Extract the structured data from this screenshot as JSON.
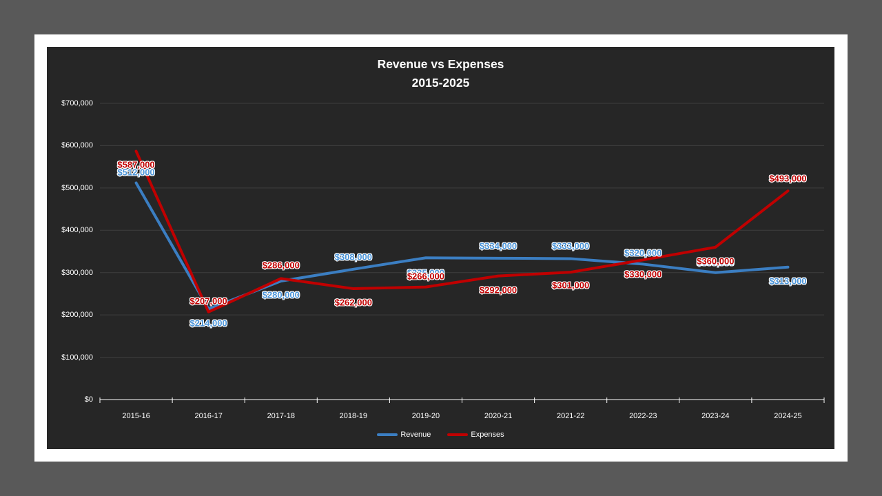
{
  "background_color": "#595959",
  "slide_color": "#ffffff",
  "chart_data": {
    "type": "line",
    "title": "Revenue vs Expenses",
    "subtitle": "2015-2025",
    "plot_bg": "#262626",
    "gridline_color": "#3f3f3f",
    "axis_color": "#ffffff",
    "text_color": "#ffffff",
    "grid": "horizontal-only",
    "legend_position": "bottom-center",
    "categories": [
      "2015-16",
      "2016-17",
      "2017-18",
      "2018-19",
      "2019-20",
      "2020-21",
      "2021-22",
      "2022-23",
      "2023-24",
      "2024-25"
    ],
    "ylim": [
      0,
      700000
    ],
    "ytick_interval": 100000,
    "ytick_labels": [
      "$0",
      "$100,000",
      "$200,000",
      "$300,000",
      "$400,000",
      "$500,000",
      "$600,000",
      "$700,000"
    ],
    "series": [
      {
        "name": "Revenue",
        "color": "#3B7EC2",
        "label_color": "#4C95D9",
        "values": [
          512000,
          214000,
          280000,
          308000,
          335000,
          334000,
          333000,
          320000,
          300000,
          313000
        ],
        "labels": [
          "$512,000",
          "$214,000",
          "$280,000",
          "$308,000",
          "$335,000",
          "$334,000",
          "$333,000",
          "$320,000",
          "$300,000",
          "$313,000"
        ],
        "label_dy": [
          -15,
          20,
          20,
          -18,
          22,
          -18,
          -18,
          -16,
          -15,
          20
        ],
        "label_z": [
          3,
          1,
          1,
          1,
          1,
          1,
          1,
          1,
          1,
          1
        ]
      },
      {
        "name": "Expenses",
        "color": "#C00000",
        "label_color": "#C00000",
        "values": [
          587000,
          207000,
          286000,
          262000,
          266000,
          292000,
          301000,
          330000,
          360000,
          493000
        ],
        "labels": [
          "$587,000",
          "$207,000",
          "$286,000",
          "$262,000",
          "$266,000",
          "$292,000",
          "$301,000",
          "$330,000",
          "$360,000",
          "$493,000"
        ],
        "label_dy": [
          20,
          -16,
          -19,
          20,
          -16,
          20,
          19,
          21,
          20,
          -18
        ],
        "label_z": [
          2,
          2,
          2,
          2,
          2,
          2,
          2,
          2,
          2,
          2
        ]
      }
    ]
  }
}
